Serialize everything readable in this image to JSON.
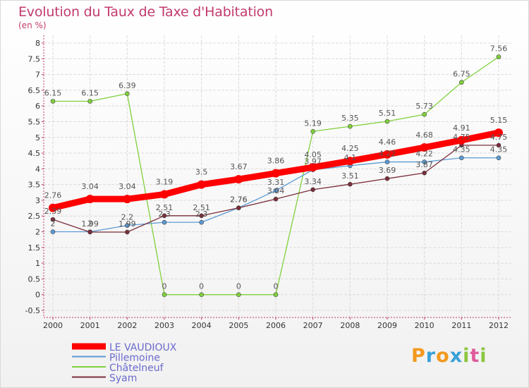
{
  "title": "Evolution du Taux de Taxe d'Habitation",
  "subtitle": "(en %)",
  "logo": {
    "letters": [
      "P",
      "r",
      "o",
      "x",
      "i",
      "t",
      "i"
    ],
    "colors": [
      "#f29a1e",
      "#3aa0d8",
      "#f29a1e",
      "#3aa0d8",
      "#8cc63f",
      "#e05a9c",
      "#8cc63f"
    ]
  },
  "colors": {
    "title": "#c23a6e",
    "axis": "#c23a6e",
    "grid": "#dcdcdc",
    "label": "#555555"
  },
  "chart_data": {
    "type": "line",
    "title": "Evolution du Taux de Taxe d'Habitation",
    "ylabel": "(en %)",
    "xlabel": "",
    "ylim": [
      -0.5,
      8
    ],
    "yticks": [
      -0.5,
      0,
      0.5,
      1,
      1.5,
      2,
      2.5,
      3,
      3.5,
      4,
      4.5,
      5,
      5.5,
      6,
      6.5,
      7,
      7.5,
      8
    ],
    "ytick_labels": [
      "-0.5",
      "0",
      "0.5",
      "1",
      "1.5",
      "2",
      "2.5",
      "3",
      "3.5",
      "4",
      "4.5",
      "5",
      "5.5",
      "6",
      "6.5",
      "7",
      "7.5",
      "8"
    ],
    "categories": [
      "2000",
      "2001",
      "2002",
      "2003",
      "2004",
      "2005",
      "2006",
      "2007",
      "2008",
      "2009",
      "2010",
      "2011",
      "2012"
    ],
    "grid": true,
    "legend_position": "bottom-left",
    "series": [
      {
        "name": "LE VAUDIOUX",
        "color": "#ff0000",
        "width": 9,
        "values": [
          2.76,
          3.04,
          3.04,
          3.19,
          3.5,
          3.67,
          3.86,
          4.05,
          4.25,
          4.46,
          4.68,
          4.91,
          5.15
        ],
        "labels": [
          "2.76",
          "3.04",
          "3.04",
          "3.19",
          "3.5",
          "3.67",
          "3.86",
          "4.05",
          "4.25",
          "4.46",
          "4.68",
          "4.91",
          "5.15"
        ]
      },
      {
        "name": "Pillemoine",
        "color": "#5b9bd5",
        "width": 1.3,
        "values": [
          2,
          2,
          2.2,
          2.3,
          2.3,
          2.76,
          3.31,
          3.97,
          4.1,
          4.22,
          4.22,
          4.35,
          4.35
        ],
        "labels": [
          "2",
          "2",
          "2.2",
          "2.3",
          "2.3",
          "2.76",
          "3.31",
          "3.97",
          "4.1",
          "4.22",
          "4.22",
          "4.35",
          "4.35"
        ]
      },
      {
        "name": "Châtelneuf",
        "color": "#7fd13b",
        "width": 1.3,
        "values": [
          6.15,
          6.15,
          6.39,
          0,
          0,
          0,
          0,
          5.19,
          5.35,
          5.51,
          5.73,
          6.75,
          7.56
        ],
        "labels": [
          "6.15",
          "6.15",
          "6.39",
          "0",
          "0",
          "0",
          "0",
          "5.19",
          "5.35",
          "5.51",
          "5.73",
          "6.75",
          "7.56"
        ]
      },
      {
        "name": "Syam",
        "color": "#7b2d3a",
        "width": 1.3,
        "values": [
          2.39,
          1.99,
          1.99,
          2.51,
          2.51,
          2.76,
          3.04,
          3.34,
          3.51,
          3.69,
          3.87,
          4.75,
          4.75
        ],
        "labels": [
          "2.39",
          "1.99",
          "1.99",
          "2.51",
          "2.51",
          "2.76",
          "3.04",
          "3.34",
          "3.51",
          "3.69",
          "3.87",
          "4.75",
          "4.75"
        ]
      }
    ]
  }
}
